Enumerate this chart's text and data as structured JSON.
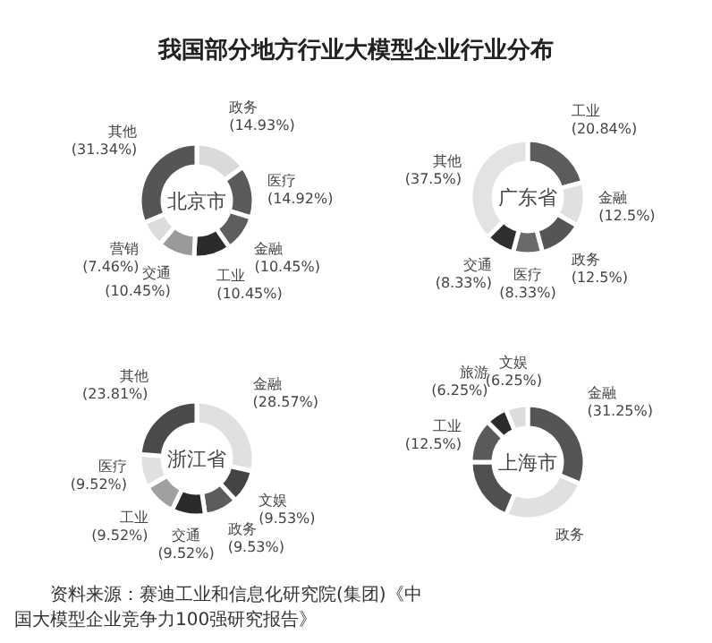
{
  "chart_data": [
    {
      "type": "other",
      "title": "我国部分地方行业大模型企业行业分布",
      "annotations": [
        "资料来源：赛迪工业和信息化研究院(集团)《中国大模型企业竞争力100强研究报告》"
      ]
    },
    {
      "type": "donut",
      "title": "北京市",
      "categories": [
        "政务",
        "医疗",
        "金融",
        "工业",
        "交通",
        "营销",
        "其他"
      ],
      "values": [
        14.93,
        14.92,
        10.45,
        10.45,
        10.45,
        7.46,
        31.34
      ],
      "colors": [
        "#dadada",
        "#5a5a5a",
        "#5e5e5e",
        "#2b2b2b",
        "#9a9a9a",
        "#dcdcdc",
        "#555555"
      ],
      "value_labels": [
        "(14.93%)",
        "(14.92%)",
        "(10.45%)",
        "(10.45%)",
        "(10.45%)",
        "(7.46%)",
        "(31.34%)"
      ]
    },
    {
      "type": "donut",
      "title": "广东省",
      "categories": [
        "工业",
        "金融",
        "政务",
        "医疗",
        "交通",
        "其他"
      ],
      "values": [
        20.84,
        12.5,
        12.5,
        8.33,
        8.33,
        37.5
      ],
      "colors": [
        "#5c5c5c",
        "#e0e0e0",
        "#555555",
        "#6a6a6a",
        "#2e2e2e",
        "#e3e3e3"
      ],
      "value_labels": [
        "(20.84%)",
        "(12.5%)",
        "(12.5%)",
        "(8.33%)",
        "(8.33%)",
        "(37.5%)"
      ]
    },
    {
      "type": "donut",
      "title": "浙江省",
      "categories": [
        "金融",
        "文娱",
        "政务",
        "交通",
        "工业",
        "医疗",
        "其他"
      ],
      "values": [
        28.57,
        9.53,
        9.53,
        9.52,
        9.52,
        9.52,
        23.81
      ],
      "colors": [
        "#e0e0e0",
        "#444444",
        "#5c5c5c",
        "#2a2a2a",
        "#a0a0a0",
        "#e0e0e0",
        "#4a4a4a"
      ],
      "value_labels": [
        "(28.57%)",
        "(9.53%)",
        "(9.53%)",
        "(9.52%)",
        "(9.52%)",
        "(9.52%)",
        "(23.81%)"
      ]
    },
    {
      "type": "donut",
      "title": "上海市",
      "categories": [
        "金融",
        "政务",
        null,
        "工业",
        "旅游",
        "文娱"
      ],
      "values": [
        31.25,
        25,
        18.75,
        12.5,
        6.25,
        6.25
      ],
      "colors": [
        "#555555",
        "#e0e0e0",
        "#505050",
        "#5a5a5a",
        "#2b2b2b",
        "#dcdcdc"
      ],
      "value_labels": [
        "(31.25%)",
        null,
        null,
        "(12.5%)",
        "(6.25%)",
        "(6.25%)"
      ]
    }
  ]
}
